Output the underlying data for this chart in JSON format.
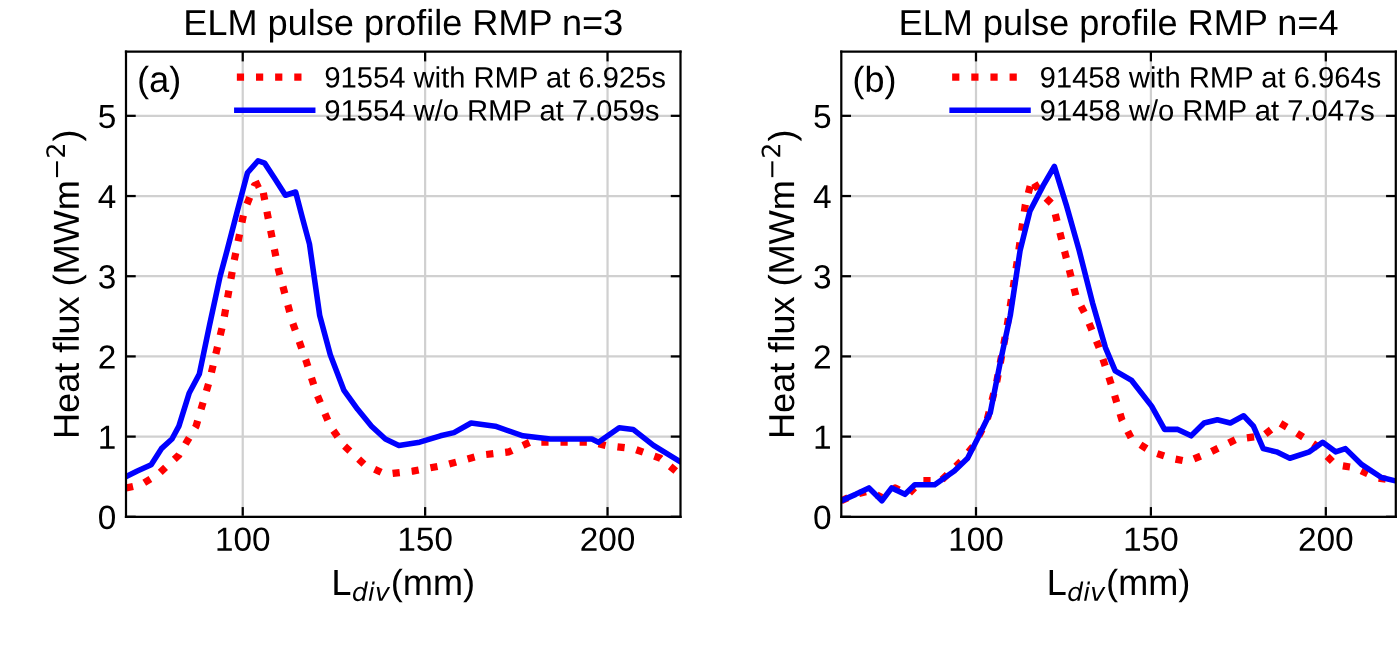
{
  "chart_data": [
    {
      "type": "line",
      "title": "ELM pulse profile RMP n=3",
      "xlabel": "L$_{div}$(mm)",
      "ylabel": "Heat flux (MWm$^{−2}$)",
      "annotations": [
        "(a)"
      ],
      "xlim": [
        68,
        220
      ],
      "ylim": [
        0,
        5.8
      ],
      "xticks": [
        100,
        150,
        200
      ],
      "yticks": [
        0,
        1,
        2,
        3,
        4,
        5
      ],
      "grid": true,
      "legend": "top right",
      "series": [
        {
          "name": "91554 with RMP at 6.925s",
          "color": "#ff0000",
          "line_style": "dotted",
          "x": [
            68,
            72.1,
            76.8,
            82.5,
            87.2,
            90.9,
            94.7,
            97.5,
            100.4,
            103.2,
            105.1,
            107.0,
            109.8,
            113.6,
            117.4,
            120.2,
            124.0,
            127.7,
            133.4,
            139.1,
            146.6,
            156.0,
            165.5,
            173.0,
            178.7,
            184.3,
            195.7,
            199.5,
            207.0,
            214.5,
            219.8
          ],
          "values": [
            0.36,
            0.4,
            0.53,
            0.77,
            1.13,
            1.7,
            2.43,
            3.16,
            3.81,
            4.13,
            4.17,
            3.72,
            3.08,
            2.43,
            1.94,
            1.54,
            1.13,
            0.89,
            0.65,
            0.53,
            0.57,
            0.65,
            0.77,
            0.81,
            0.93,
            0.93,
            0.93,
            0.89,
            0.85,
            0.73,
            0.53
          ]
        },
        {
          "name": "91554 w/o RMP at 7.059s",
          "color": "#0000ff",
          "line_style": "solid",
          "x": [
            68,
            71.1,
            74.9,
            77.7,
            80.6,
            82.5,
            85.3,
            88.1,
            90.9,
            93.8,
            95.7,
            98.5,
            101.3,
            104.2,
            106.0,
            108.9,
            111.7,
            114.5,
            116.4,
            118.3,
            121.1,
            124.0,
            127.7,
            131.5,
            135.3,
            139.1,
            142.8,
            148.5,
            154.2,
            157.9,
            162.6,
            169.2,
            176.8,
            184.3,
            195.7,
            197.5,
            203.2,
            207.0,
            212.6,
            219.8
          ],
          "values": [
            0.5,
            0.57,
            0.65,
            0.85,
            0.97,
            1.13,
            1.54,
            1.78,
            2.39,
            3.0,
            3.32,
            3.81,
            4.29,
            4.44,
            4.41,
            4.21,
            4.01,
            4.05,
            3.72,
            3.4,
            2.51,
            2.02,
            1.58,
            1.34,
            1.13,
            0.97,
            0.89,
            0.93,
            1.01,
            1.05,
            1.17,
            1.13,
            1.01,
            0.97,
            0.97,
            0.93,
            1.11,
            1.09,
            0.89,
            0.69
          ]
        }
      ]
    },
    {
      "type": "line",
      "title": "ELM pulse profile RMP n=4",
      "xlabel": "L$_{div}$(mm)",
      "ylabel": "Heat flux (MWm$^{−2}$)",
      "annotations": [
        "(b)"
      ],
      "xlim": [
        61.5,
        220
      ],
      "ylim": [
        0,
        5.8
      ],
      "xticks": [
        100,
        150,
        200
      ],
      "yticks": [
        0,
        1,
        2,
        3,
        4,
        5
      ],
      "grid": true,
      "legend": "top right",
      "series": [
        {
          "name": "91458 with RMP at 6.964s",
          "color": "#ff0000",
          "line_style": "dotted",
          "x": [
            61.5,
            65.6,
            69.4,
            73.1,
            76.9,
            80.6,
            84.4,
            90.0,
            95.7,
            99.4,
            103.2,
            106.0,
            108.8,
            111.7,
            114.1,
            116.0,
            118.2,
            122.0,
            124.8,
            128.6,
            131.4,
            135.2,
            138.9,
            141.7,
            144.5,
            150.2,
            155.8,
            160.5,
            167.1,
            174.6,
            182.1,
            186.8,
            191.5,
            197.2,
            202.8,
            208.5,
            214.1,
            219.7
          ],
          "values": [
            0.2,
            0.28,
            0.32,
            0.24,
            0.36,
            0.28,
            0.45,
            0.45,
            0.69,
            0.89,
            1.21,
            1.7,
            2.35,
            3.16,
            3.89,
            4.21,
            4.05,
            3.89,
            3.4,
            2.75,
            2.51,
            2.11,
            1.62,
            1.21,
            0.97,
            0.81,
            0.73,
            0.69,
            0.81,
            0.97,
            1.01,
            1.17,
            1.05,
            0.89,
            0.65,
            0.61,
            0.49,
            0.45
          ]
        },
        {
          "name": "91458 w/o RMP at 7.047s",
          "color": "#0000ff",
          "line_style": "solid",
          "x": [
            61.5,
            65.6,
            69.4,
            73.1,
            75.9,
            79.7,
            82.5,
            88.2,
            93.8,
            97.6,
            100.4,
            104.1,
            107.0,
            109.8,
            112.6,
            115.4,
            119.2,
            122.4,
            125.8,
            129.5,
            133.3,
            137.0,
            139.8,
            144.5,
            150.2,
            153.9,
            157.7,
            161.5,
            165.2,
            169.0,
            172.7,
            176.5,
            179.3,
            182.1,
            185.9,
            189.7,
            195.3,
            199.1,
            202.8,
            205.6,
            210.3,
            215.9,
            219.7
          ],
          "values": [
            0.2,
            0.28,
            0.36,
            0.2,
            0.36,
            0.28,
            0.4,
            0.4,
            0.57,
            0.73,
            0.97,
            1.3,
            1.94,
            2.51,
            3.32,
            3.81,
            4.13,
            4.37,
            3.89,
            3.32,
            2.67,
            2.11,
            1.82,
            1.7,
            1.38,
            1.09,
            1.09,
            1.01,
            1.17,
            1.21,
            1.17,
            1.26,
            1.13,
            0.85,
            0.81,
            0.73,
            0.81,
            0.93,
            0.81,
            0.85,
            0.65,
            0.49,
            0.45
          ]
        }
      ]
    }
  ]
}
